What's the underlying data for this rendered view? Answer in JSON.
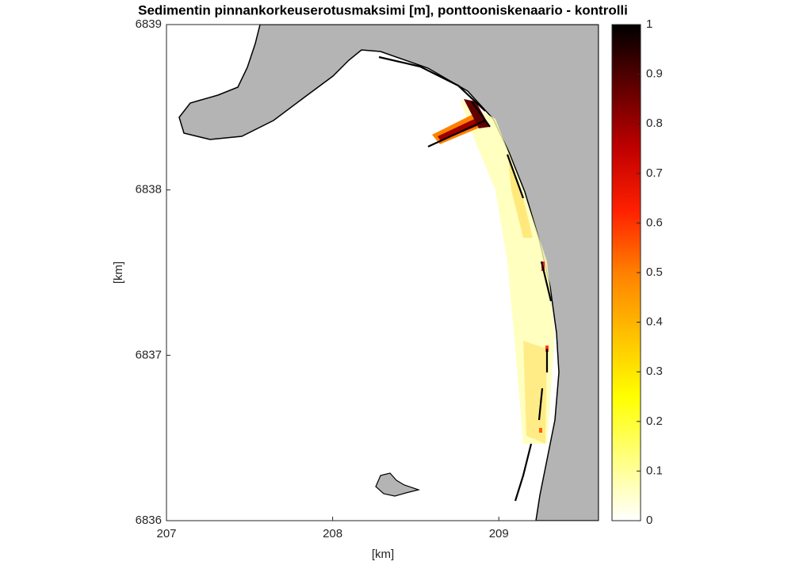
{
  "chart_data": {
    "type": "map",
    "title": "Sedimentin pinnankorkeuserotusmaksimi [m], ponttooniskenaario - kontrolli",
    "xlabel": "[km]",
    "ylabel": "[km]",
    "xlim": [
      207,
      209.6
    ],
    "xticks": [
      207,
      208,
      209
    ],
    "ylim": [
      6836,
      6839
    ],
    "yticks": [
      6836,
      6837,
      6838,
      6839
    ],
    "colorbar": {
      "lim": [
        0,
        1
      ],
      "ticks": [
        0,
        0.1,
        0.2,
        0.3,
        0.4,
        0.5,
        0.6,
        0.7,
        0.8,
        0.9,
        1
      ],
      "colormap": [
        "#ffffff",
        "#ffff80",
        "#ffff00",
        "#ffc000",
        "#ff8000",
        "#ff2000",
        "#c00000",
        "#600000",
        "#000000"
      ]
    },
    "land_color": "#b4b4b4"
  }
}
